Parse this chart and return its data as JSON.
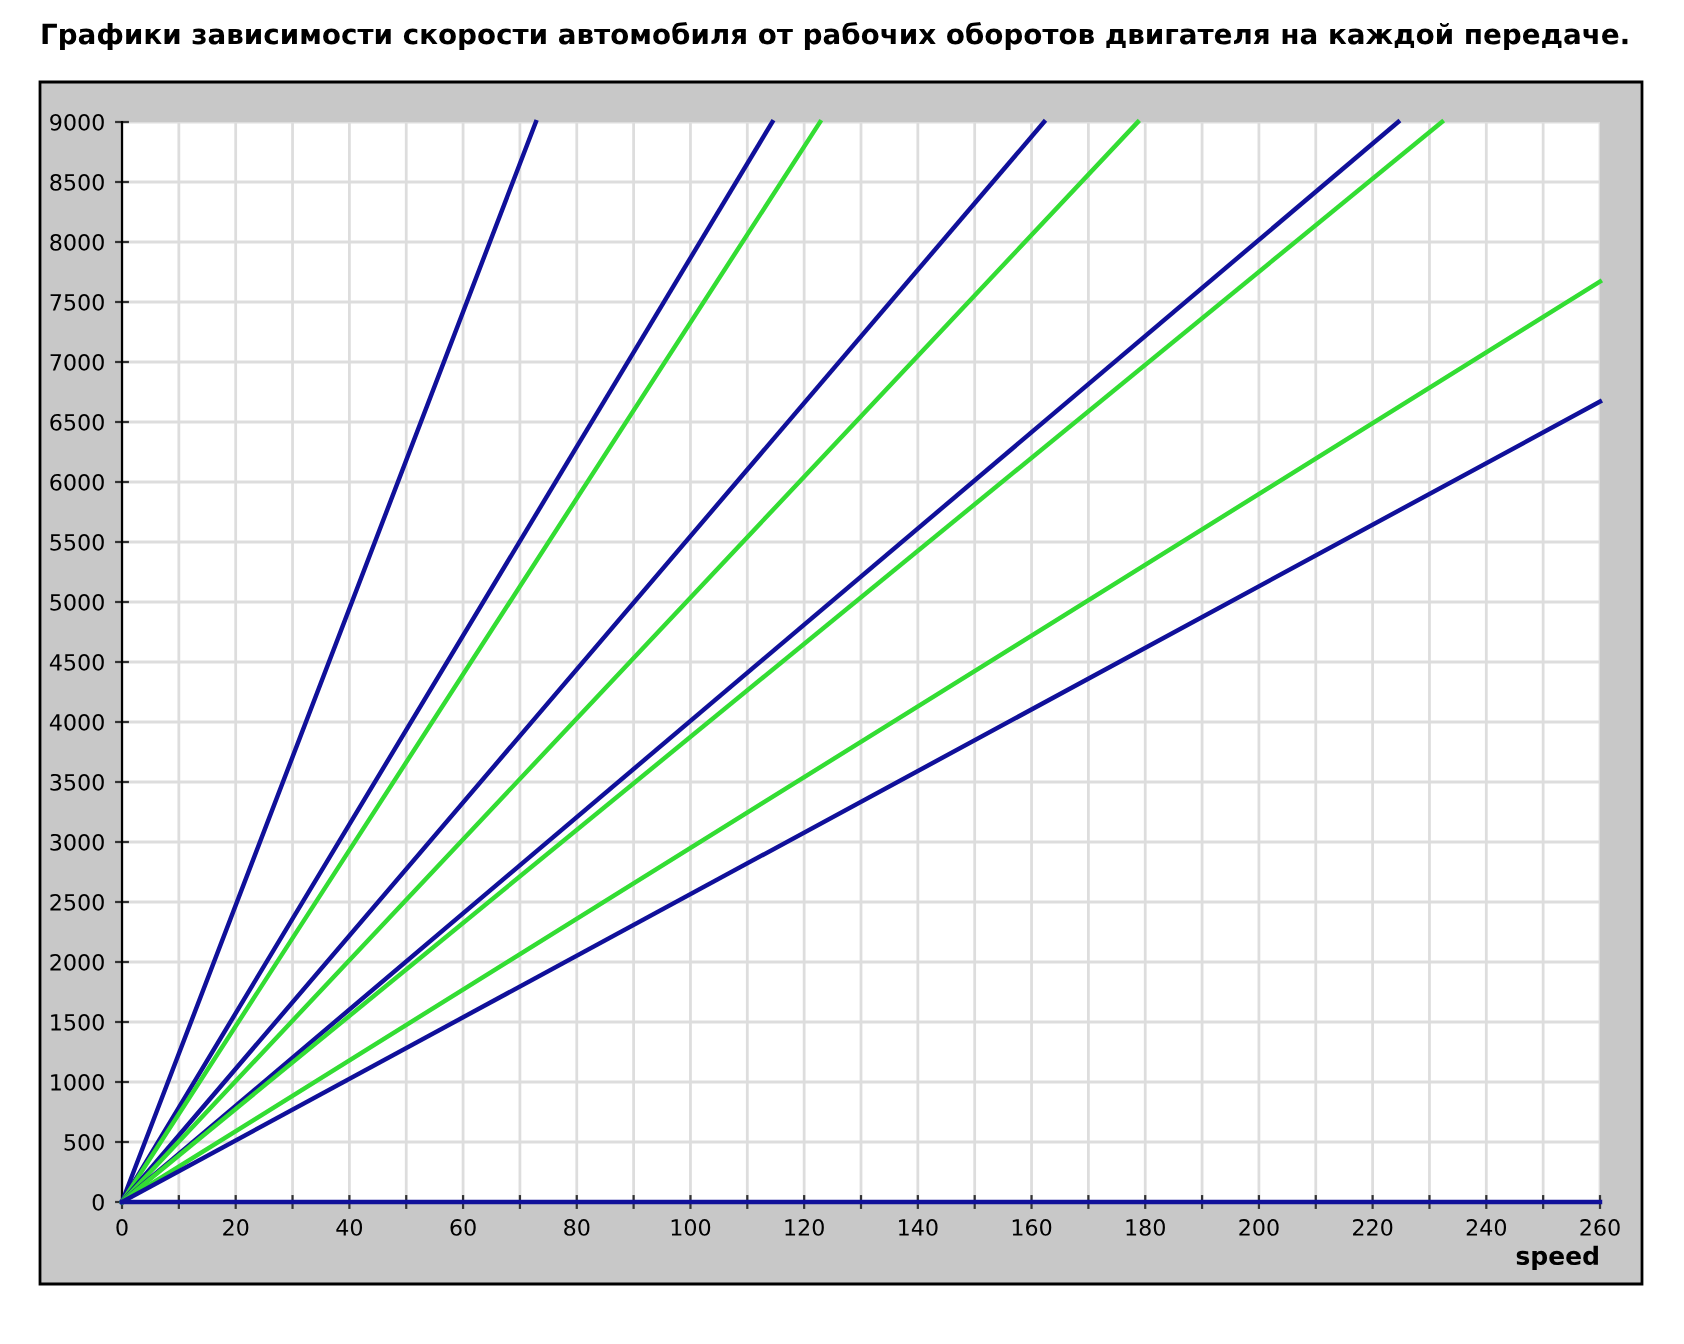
{
  "chart_data": {
    "type": "line",
    "title": "Графики зависимости скорости автомобиля от рабочих оборотов двигателя на каждой передаче.",
    "xlabel": "speed",
    "series": [
      {
        "color": "#10109a",
        "x": [
          0,
          72.8
        ],
        "values": [
          0,
          9000
        ]
      },
      {
        "color": "#10109a",
        "x": [
          0,
          114.4
        ],
        "values": [
          0,
          9000
        ]
      },
      {
        "color": "#33dd33",
        "x": [
          0,
          122.8
        ],
        "values": [
          0,
          9000
        ]
      },
      {
        "color": "#10109a",
        "x": [
          0,
          162.2
        ],
        "values": [
          0,
          9000
        ]
      },
      {
        "color": "#33dd33",
        "x": [
          0,
          178.7
        ],
        "values": [
          0,
          9000
        ]
      },
      {
        "color": "#10109a",
        "x": [
          0,
          224.5
        ],
        "values": [
          0,
          9000
        ]
      },
      {
        "color": "#33dd33",
        "x": [
          0,
          232.2
        ],
        "values": [
          0,
          9000
        ]
      },
      {
        "color": "#33dd33",
        "x": [
          0,
          260
        ],
        "values": [
          0,
          7670
        ]
      },
      {
        "color": "#10109a",
        "x": [
          0,
          260
        ],
        "values": [
          0,
          6670
        ]
      },
      {
        "color": "#10109a",
        "x": [
          0,
          260
        ],
        "values": [
          0,
          0
        ]
      }
    ],
    "xlim": [
      0,
      260
    ],
    "ylim": [
      0,
      9000
    ],
    "xticks": [
      0,
      {
        "value": 10,
        "label": null
      },
      20,
      {
        "value": 30,
        "label": null
      },
      40,
      {
        "value": 50,
        "label": null
      },
      60,
      {
        "value": 70,
        "label": null
      },
      80,
      {
        "value": 90,
        "label": null
      },
      100,
      {
        "value": 110,
        "label": null
      },
      120,
      {
        "value": 130,
        "label": null
      },
      140,
      {
        "value": 150,
        "label": null
      },
      160,
      {
        "value": 170,
        "label": null
      },
      180,
      {
        "value": 190,
        "label": null
      },
      200,
      {
        "value": 210,
        "label": null
      },
      220,
      {
        "value": 230,
        "label": null
      },
      240,
      {
        "value": 250,
        "label": null
      },
      260
    ],
    "yticks": [
      0,
      500,
      1000,
      1500,
      2000,
      2500,
      3000,
      3500,
      4000,
      4500,
      5000,
      5500,
      6000,
      6500,
      7000,
      7500,
      8000,
      8500,
      9000
    ],
    "grid": true,
    "legend": false,
    "marker": "none",
    "line_style": "solid"
  }
}
